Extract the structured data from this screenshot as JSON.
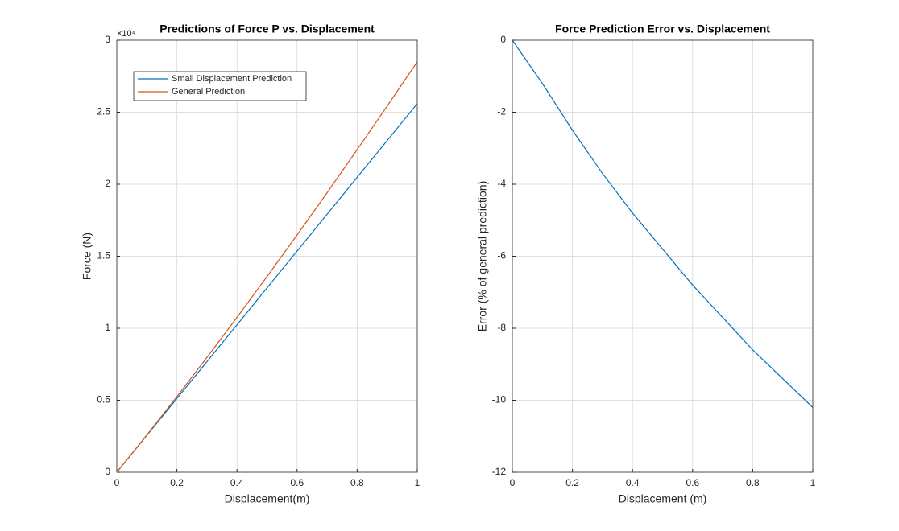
{
  "chart_data": [
    {
      "type": "line",
      "title": "Predictions of Force P vs. Displacement",
      "x_label": "Displacement(m)",
      "y_label": "Force (N)",
      "y_exponent": "×10⁴",
      "x": [
        0,
        0.1,
        0.2,
        0.3,
        0.4,
        0.5,
        0.6,
        0.7,
        0.8,
        0.9,
        1
      ],
      "series": [
        {
          "name": "Small Displacement Prediction",
          "color": "#0072bd",
          "values": [
            0,
            2560,
            5120,
            7680,
            10240,
            12800,
            15360,
            17920,
            20480,
            23040,
            25600
          ]
        },
        {
          "name": "General Prediction",
          "color": "#d95319",
          "values": [
            0,
            2591,
            5251,
            7975,
            10756,
            13588,
            16481,
            19415,
            22407,
            25430,
            28508
          ]
        }
      ],
      "xlim": [
        0,
        1
      ],
      "xticks": [
        0,
        0.2,
        0.4,
        0.6,
        0.8,
        1
      ],
      "ylim": [
        0,
        30000
      ],
      "yticks": [
        0,
        {
          "value": 5000,
          "label": "0.5"
        },
        {
          "value": 10000,
          "label": "1"
        },
        {
          "value": 15000,
          "label": "1.5"
        },
        {
          "value": 20000,
          "label": "2"
        },
        {
          "value": 25000,
          "label": "2.5"
        },
        {
          "value": 30000,
          "label": "3"
        }
      ],
      "grid": true,
      "legend": "northwest"
    },
    {
      "type": "line",
      "title": "Force Prediction Error vs. Displacement",
      "x_label": "Displacement (m)",
      "y_label": "Error (% of general prediction)",
      "x": [
        0,
        0.1,
        0.2,
        0.3,
        0.4,
        0.5,
        0.6,
        0.7,
        0.8,
        0.9,
        1
      ],
      "series": [
        {
          "color": "#0072bd",
          "values": [
            0,
            -1.2,
            -2.5,
            -3.7,
            -4.8,
            -5.8,
            -6.8,
            -7.7,
            -8.6,
            -9.4,
            -10.2
          ]
        }
      ],
      "xlim": [
        0,
        1
      ],
      "xticks": [
        0,
        0.2,
        0.4,
        0.6,
        0.8,
        1
      ],
      "ylim": [
        -12,
        0
      ],
      "yticks": [
        -12,
        -10,
        -8,
        -6,
        -4,
        -2,
        0
      ],
      "grid": true
    }
  ]
}
